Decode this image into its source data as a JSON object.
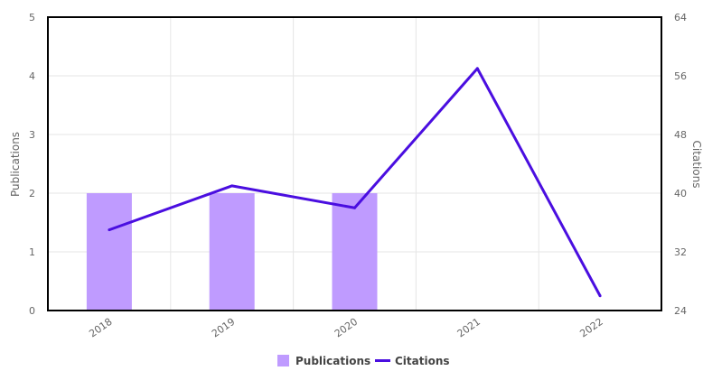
{
  "chart_data": {
    "type": "bar",
    "categories": [
      "2018",
      "2019",
      "2020",
      "2021",
      "2022"
    ],
    "series": [
      {
        "name": "Publications",
        "type": "bar",
        "axis": "left",
        "values": [
          2,
          2,
          2,
          0,
          0
        ],
        "color": "#bf9bff"
      },
      {
        "name": "Citations",
        "type": "line",
        "axis": "right",
        "values": [
          35,
          41,
          38,
          57,
          26
        ],
        "color": "#4a0ee0"
      }
    ],
    "ylabel": "Publications",
    "ylabel_right": "Citations",
    "ylim": [
      0,
      5
    ],
    "ylim_right": [
      24,
      64
    ],
    "yticks": [
      "0",
      "1",
      "2",
      "3",
      "4",
      "5"
    ],
    "yticks_right": [
      "24",
      "32",
      "40",
      "48",
      "56",
      "64"
    ],
    "grid": true,
    "legend_position": "bottom-center",
    "colors": {
      "grid": "#e6e6e6",
      "axis": "#000000",
      "text": "#666666"
    }
  }
}
